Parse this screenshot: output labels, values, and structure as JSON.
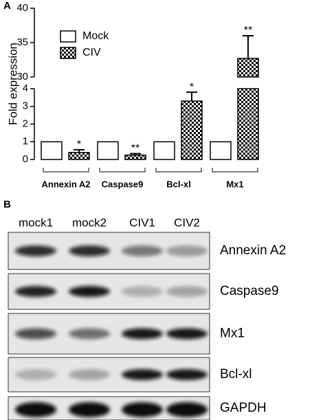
{
  "chart_data": {
    "type": "bar",
    "panel_label": "A",
    "y_label": "Fold expression",
    "categories": [
      "Annexin A2",
      "Caspase9",
      "Bcl-xl",
      "Mx1"
    ],
    "series": [
      {
        "name": "Mock",
        "color": "#ffffff",
        "values": [
          1,
          1,
          1,
          1
        ]
      },
      {
        "name": "CIV",
        "color": "#000000",
        "pattern": "checker",
        "values": [
          0.4,
          0.25,
          3.3,
          32.7
        ],
        "errors": [
          0.15,
          0.08,
          0.5,
          3.3
        ],
        "significance": [
          "*",
          "**",
          "*",
          "**"
        ]
      }
    ],
    "ylim": [
      0,
      40
    ],
    "y_break": [
      4,
      30
    ],
    "yticks": [
      0,
      1,
      2,
      3,
      4,
      30,
      35,
      40
    ],
    "grid": false,
    "legend": "top-left"
  },
  "western_blot": {
    "panel_label": "B",
    "lanes": [
      "mock1",
      "mock2",
      "CIV1",
      "CIV2"
    ],
    "proteins": [
      "Annexin A2",
      "Caspase9",
      "Mx1",
      "Bcl-xl",
      "GAPDH"
    ]
  }
}
